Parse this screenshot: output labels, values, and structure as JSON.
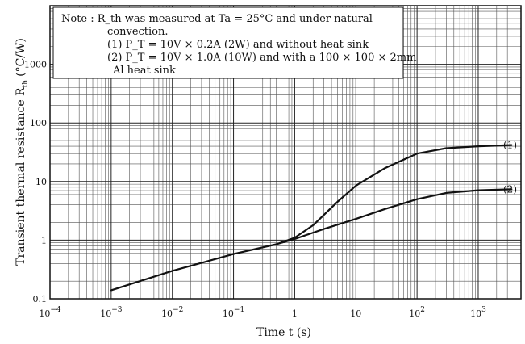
{
  "chart_data": {
    "type": "line",
    "title": "",
    "xlabel": "Time  t  (s)",
    "ylabel": "Transient thermal resistance  R",
    "ylabel_subscript": "th",
    "ylabel_unit": "(°C/W)",
    "x_scale": "log",
    "y_scale": "log",
    "xlim": [
      0.0001,
      5000
    ],
    "ylim": [
      0.1,
      10000
    ],
    "grid": true,
    "x_ticks": [
      {
        "value": 0.0001,
        "base": "10",
        "exp": "−4"
      },
      {
        "value": 0.001,
        "base": "10",
        "exp": "−3"
      },
      {
        "value": 0.01,
        "base": "10",
        "exp": "−2"
      },
      {
        "value": 0.1,
        "base": "10",
        "exp": "−1"
      },
      {
        "value": 1,
        "base": "1",
        "exp": ""
      },
      {
        "value": 10,
        "base": "10",
        "exp": ""
      },
      {
        "value": 100,
        "base": "10",
        "exp": "2"
      },
      {
        "value": 1000,
        "base": "10",
        "exp": "3"
      }
    ],
    "y_ticks": [
      {
        "value": 0.1,
        "label": "0.1"
      },
      {
        "value": 1,
        "label": "1"
      },
      {
        "value": 10,
        "label": "10"
      },
      {
        "value": 100,
        "label": "100"
      },
      {
        "value": 1000,
        "label": "1000"
      }
    ],
    "series": [
      {
        "name": "(1)",
        "x": [
          0.001,
          0.01,
          0.1,
          0.5,
          1,
          2,
          5,
          10,
          30,
          100,
          300,
          1000,
          3500
        ],
        "y": [
          0.14,
          0.3,
          0.58,
          0.85,
          1.1,
          1.8,
          4.5,
          8.5,
          17,
          30,
          37,
          40,
          42
        ]
      },
      {
        "name": "(2)",
        "x": [
          0.5,
          1,
          3,
          10,
          30,
          100,
          300,
          1000,
          3500
        ],
        "y": [
          0.85,
          1.05,
          1.55,
          2.3,
          3.4,
          5.0,
          6.4,
          7.1,
          7.4
        ]
      }
    ],
    "note": {
      "lines": [
        "Note  :  R_th was measured at Ta = 25°C  and under natural",
        "convection.",
        "(1) P_T = 10V × 0.2A (2W) and without heat sink",
        "(2) P_T = 10V × 1.0A (10W) and with a 100 × 100 × 2mm",
        "Al heat sink"
      ]
    }
  }
}
